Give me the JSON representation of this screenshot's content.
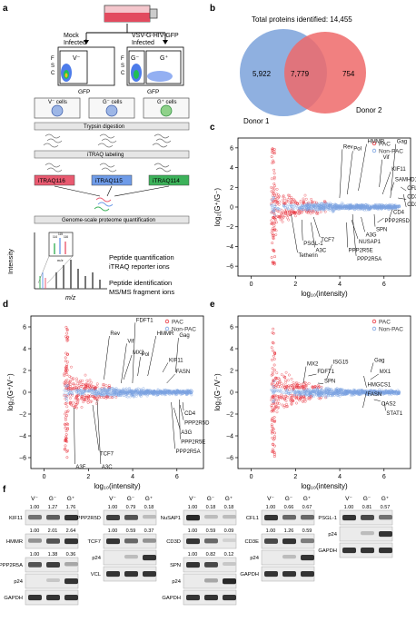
{
  "panels": {
    "a": {
      "label": "a",
      "mock": [
        "Mock",
        "Infected"
      ],
      "vsv": [
        "VSV-G-HIV-GFP",
        "Infected"
      ],
      "fsc": [
        "F",
        "S",
        "C"
      ],
      "gfp": "GFP",
      "gate_vneg": "V⁻",
      "gate_gneg": "G⁻",
      "gate_gpos": "G⁺",
      "cells": [
        "V⁻ cells",
        "G⁻ cells",
        "G⁺ cells"
      ],
      "trypsin": "Trypsin digestion",
      "itraq_label": "iTRAQ labeling",
      "tags": [
        "iTRAQ116",
        "iTRAQ115",
        "iTRAQ114"
      ],
      "quant": "Genome-scale proteome quantification",
      "intensity": "Intensity",
      "mz": "m/z",
      "mz_inset": "m/z",
      "reporter_ticks": [
        "114",
        "115",
        "116"
      ],
      "quant_text": [
        "Peptide quantification",
        "iTRAQ reporter ions"
      ],
      "ident_text": [
        "Peptide identification",
        "MS/MS fragment ions"
      ]
    },
    "b": {
      "label": "b",
      "title": "Total proteins identified: 14,455",
      "left": "5,922",
      "mid": "7,779",
      "right": "754",
      "donor1": "Donor 1",
      "donor2": "Donor 2"
    },
    "c": {
      "label": "c",
      "legend": [
        "PAC",
        "Non-PAC"
      ],
      "ylab": "log₂(G⁺/G⁻)",
      "xlab": "log₁₀(intensity)",
      "yticks": [
        "6",
        "4",
        "2",
        "0",
        "−2",
        "−4",
        "−6"
      ],
      "xticks": [
        "0",
        "2",
        "4",
        "6"
      ],
      "genes": [
        "Rev",
        "Pol",
        "HMMR",
        "Vif",
        "Gag",
        "KIF11",
        "SAMHD1",
        "CFL1",
        "CD3E",
        "CD3D",
        "CD4",
        "PPP2R5D",
        "SPN",
        "A3G",
        "NUSAP1",
        "PPP2R5E",
        "PPP2R5A",
        "TCF7",
        "PSGL-1",
        "A3C",
        "Tetherin"
      ]
    },
    "d": {
      "label": "d",
      "legend": [
        "PAC",
        "Non-PAC"
      ],
      "ylab": "log₂(G⁺/V⁻)",
      "xlab": "log₁₀(intensity)",
      "yticks": [
        "6",
        "4",
        "2",
        "0",
        "−2",
        "−4",
        "−6"
      ],
      "xticks": [
        "0",
        "2",
        "4",
        "6"
      ],
      "genes": [
        "FDFT1",
        "Rev",
        "HMMR",
        "Gag",
        "Vif",
        "MX2",
        "Pol",
        "KIF11",
        "FASN",
        "CD4",
        "PPP2R5D",
        "A3G",
        "PPP2R5E",
        "PPP2R5A",
        "TCF7",
        "A3F",
        "A3C"
      ]
    },
    "e": {
      "label": "e",
      "legend": [
        "PAC",
        "Non-PAC"
      ],
      "ylab": "log₂(G⁻/V⁻)",
      "xlab": "log₁₀(intensity)",
      "yticks": [
        "6",
        "4",
        "2",
        "0",
        "−2",
        "−4",
        "−6"
      ],
      "xticks": [
        "0",
        "2",
        "4",
        "6"
      ],
      "genes": [
        "MX2",
        "ISG15",
        "FDFT1",
        "Gag",
        "SPN",
        "MX1",
        "HMGCS1",
        "FASN",
        "OAS2",
        "STAT1"
      ]
    },
    "f": {
      "label": "f",
      "lanes": [
        "V⁻",
        "G⁻",
        "G⁺"
      ],
      "blots": [
        {
          "rows": [
            {
              "name": "KIF11",
              "vals": [
                "1.00",
                "1.27",
                "1.76"
              ],
              "bands": [
                0.55,
                0.65,
                0.85
              ]
            },
            {
              "name": "HMMR",
              "vals": [
                "1.00",
                "2.01",
                "2.64"
              ],
              "bands": [
                0.4,
                0.7,
                0.85
              ]
            },
            {
              "name": "PPP2R5A",
              "vals": [
                "1.00",
                "1.38",
                "0.36"
              ],
              "bands": [
                0.7,
                0.8,
                0.3
              ]
            },
            {
              "name": "p24",
              "vals": [],
              "bands": [
                0.0,
                0.15,
                0.85
              ]
            },
            {
              "name": "GAPDH",
              "vals": [],
              "bands": [
                0.85,
                0.85,
                0.85
              ]
            }
          ]
        },
        {
          "rows": [
            {
              "name": "PPP2R5D",
              "vals": [
                "1.00",
                "0.79",
                "0.18"
              ],
              "bands": [
                0.8,
                0.7,
                0.2
              ]
            },
            {
              "name": "TCF7",
              "vals": [
                "1.00",
                "0.59",
                "0.37"
              ],
              "bands": [
                0.85,
                0.6,
                0.4
              ]
            },
            {
              "name": "p24",
              "vals": [],
              "bands": [
                0.0,
                0.2,
                0.85
              ]
            },
            {
              "name": "VCL",
              "vals": [],
              "bands": [
                0.85,
                0.85,
                0.85
              ]
            }
          ]
        },
        {
          "rows": [
            {
              "name": "NuSAP1",
              "vals": [
                "1.00",
                "0.18",
                "0.18"
              ],
              "bands": [
                0.9,
                0.2,
                0.2
              ]
            },
            {
              "name": "CD3D",
              "vals": [
                "1.00",
                "0.59",
                "0.09"
              ],
              "bands": [
                0.85,
                0.6,
                0.1
              ]
            },
            {
              "name": "SPN",
              "vals": [
                "1.00",
                "0.82",
                "0.12"
              ],
              "bands": [
                0.85,
                0.75,
                0.15
              ]
            },
            {
              "name": "p24",
              "vals": [],
              "bands": [
                0.0,
                0.3,
                0.9
              ]
            },
            {
              "name": "GAPDH",
              "vals": [],
              "bands": [
                0.85,
                0.85,
                0.85
              ]
            }
          ]
        },
        {
          "rows": [
            {
              "name": "CFL1",
              "vals": [
                "1.00",
                "0.66",
                "0.67"
              ],
              "bands": [
                0.85,
                0.6,
                0.6
              ]
            },
            {
              "name": "CD3E",
              "vals": [
                "1.00",
                "1.26",
                "0.59"
              ],
              "bands": [
                0.75,
                0.85,
                0.5
              ]
            },
            {
              "name": "p24",
              "vals": [],
              "bands": [
                0.0,
                0.2,
                0.85
              ]
            },
            {
              "name": "GAPDH",
              "vals": [],
              "bands": [
                0.85,
                0.85,
                0.85
              ]
            }
          ]
        },
        {
          "rows": [
            {
              "name": "PSGL-1",
              "vals": [
                "1.00",
                "0.81",
                "0.57"
              ],
              "bands": [
                0.85,
                0.75,
                0.55
              ]
            },
            {
              "name": "p24",
              "vals": [],
              "bands": [
                0.0,
                0.2,
                0.85
              ]
            },
            {
              "name": "GAPDH",
              "vals": [],
              "bands": [
                0.85,
                0.85,
                0.85
              ]
            }
          ]
        }
      ]
    }
  },
  "colors": {
    "pac": "#e8303a",
    "nonpac": "#7aa2e0",
    "venn_left": "#8fb0e0",
    "venn_right": "#ef6a6a",
    "venn_mid": "#d56f86"
  }
}
